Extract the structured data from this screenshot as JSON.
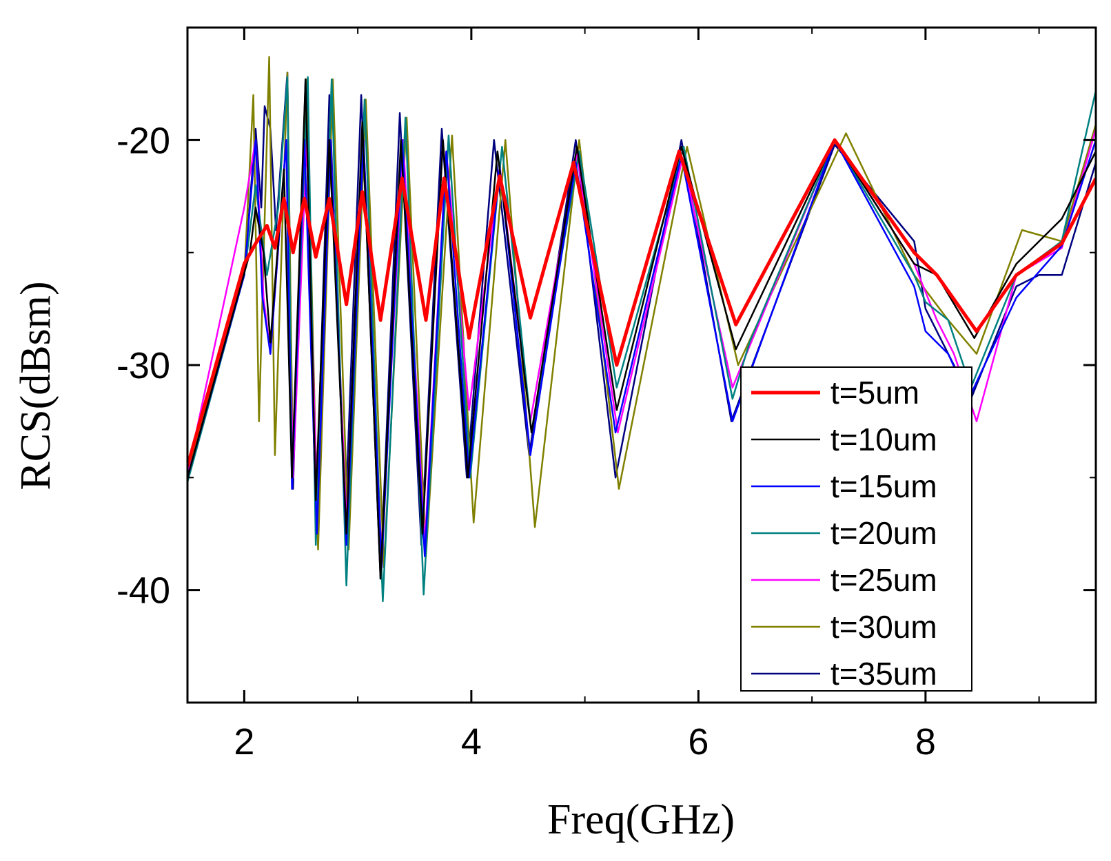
{
  "chart_data": {
    "type": "line",
    "title": "",
    "xlabel": "Freq(GHz)",
    "ylabel": "RCS(dBsm)",
    "xlim": [
      1.5,
      9.5
    ],
    "ylim": [
      -45,
      -15
    ],
    "x_ticks": [
      2,
      4,
      6,
      8
    ],
    "x_tick_labels": [
      "2",
      "4",
      "6",
      "8"
    ],
    "y_ticks": [
      -20,
      -30,
      -40
    ],
    "y_tick_labels": [
      "-20",
      "-30",
      "-40"
    ],
    "grid": false,
    "legend_position": "lower-right inside plot",
    "series": [
      {
        "name": "t=5um",
        "color": "#ff0000",
        "width": 5,
        "points": [
          [
            1.5,
            -34.5
          ],
          [
            2.0,
            -25.5
          ],
          [
            2.1,
            -24.6
          ],
          [
            2.2,
            -23.8
          ],
          [
            2.27,
            -24.8
          ],
          [
            2.35,
            -22.6
          ],
          [
            2.43,
            -25.0
          ],
          [
            2.53,
            -22.6
          ],
          [
            2.63,
            -25.2
          ],
          [
            2.75,
            -22.6
          ],
          [
            2.9,
            -27.3
          ],
          [
            3.04,
            -22.3
          ],
          [
            3.2,
            -28.0
          ],
          [
            3.39,
            -21.7
          ],
          [
            3.6,
            -28.0
          ],
          [
            3.76,
            -21.7
          ],
          [
            3.98,
            -28.8
          ],
          [
            4.25,
            -21.6
          ],
          [
            4.52,
            -27.9
          ],
          [
            4.9,
            -21.0
          ],
          [
            5.28,
            -30.0
          ],
          [
            5.83,
            -20.5
          ],
          [
            6.33,
            -28.2
          ],
          [
            7.2,
            -20.0
          ],
          [
            7.9,
            -25.0
          ],
          [
            8.1,
            -26.0
          ],
          [
            8.45,
            -28.5
          ],
          [
            8.8,
            -26.0
          ],
          [
            9.2,
            -24.6
          ],
          [
            9.5,
            -21.7
          ]
        ]
      },
      {
        "name": "t=10um",
        "color": "#000000",
        "width": 2.5,
        "points": [
          [
            1.5,
            -35.0
          ],
          [
            2.05,
            -25.0
          ],
          [
            2.1,
            -23.0
          ],
          [
            2.17,
            -25.0
          ],
          [
            2.23,
            -29.0
          ],
          [
            2.35,
            -21.3
          ],
          [
            2.42,
            -35.0
          ],
          [
            2.54,
            -17.3
          ],
          [
            2.63,
            -36.0
          ],
          [
            2.75,
            -20.0
          ],
          [
            2.9,
            -37.5
          ],
          [
            3.04,
            -19.2
          ],
          [
            3.2,
            -39.5
          ],
          [
            3.38,
            -20.0
          ],
          [
            3.57,
            -37.5
          ],
          [
            3.75,
            -20.0
          ],
          [
            3.97,
            -35.0
          ],
          [
            4.23,
            -20.5
          ],
          [
            4.53,
            -33.0
          ],
          [
            4.93,
            -20.3
          ],
          [
            5.28,
            -32.0
          ],
          [
            5.85,
            -20.3
          ],
          [
            6.33,
            -29.3
          ],
          [
            7.2,
            -20.0
          ],
          [
            7.9,
            -25.5
          ],
          [
            8.1,
            -26.0
          ],
          [
            8.43,
            -28.8
          ],
          [
            8.8,
            -25.5
          ],
          [
            9.2,
            -23.5
          ],
          [
            9.5,
            -20.5
          ]
        ]
      },
      {
        "name": "t=15um",
        "color": "#0000ff",
        "width": 2.5,
        "points": [
          [
            1.5,
            -35.0
          ],
          [
            2.0,
            -26.0
          ],
          [
            2.1,
            -20.0
          ],
          [
            2.16,
            -27.0
          ],
          [
            2.23,
            -29.5
          ],
          [
            2.37,
            -20.0
          ],
          [
            2.42,
            -35.5
          ],
          [
            2.53,
            -20.0
          ],
          [
            2.64,
            -37.5
          ],
          [
            2.76,
            -20.0
          ],
          [
            2.9,
            -38.0
          ],
          [
            3.05,
            -20.0
          ],
          [
            3.21,
            -39.0
          ],
          [
            3.39,
            -20.0
          ],
          [
            3.59,
            -38.5
          ],
          [
            3.78,
            -20.5
          ],
          [
            3.98,
            -35.0
          ],
          [
            4.25,
            -21.2
          ],
          [
            4.52,
            -34.0
          ],
          [
            4.92,
            -21.0
          ],
          [
            5.27,
            -33.0
          ],
          [
            5.85,
            -20.7
          ],
          [
            6.3,
            -32.5
          ],
          [
            7.2,
            -20.0
          ],
          [
            7.9,
            -26.5
          ],
          [
            8.0,
            -28.5
          ],
          [
            8.2,
            -29.5
          ],
          [
            8.38,
            -31.5
          ],
          [
            8.8,
            -27.0
          ],
          [
            9.2,
            -24.7
          ],
          [
            9.5,
            -20.0
          ]
        ]
      },
      {
        "name": "t=20um",
        "color": "#008080",
        "width": 2.5,
        "points": [
          [
            1.5,
            -35.2
          ],
          [
            2.0,
            -26.0
          ],
          [
            2.1,
            -22.0
          ],
          [
            2.2,
            -26.0
          ],
          [
            2.3,
            -23.0
          ],
          [
            2.38,
            -17.2
          ],
          [
            2.42,
            -35.0
          ],
          [
            2.56,
            -17.2
          ],
          [
            2.63,
            -38.0
          ],
          [
            2.77,
            -17.3
          ],
          [
            2.9,
            -39.8
          ],
          [
            3.06,
            -18.2
          ],
          [
            3.22,
            -40.5
          ],
          [
            3.42,
            -19.0
          ],
          [
            3.58,
            -40.2
          ],
          [
            3.8,
            -19.8
          ],
          [
            3.99,
            -35.0
          ],
          [
            4.27,
            -20.3
          ],
          [
            4.53,
            -33.0
          ],
          [
            4.95,
            -20.5
          ],
          [
            5.28,
            -31.0
          ],
          [
            5.87,
            -20.3
          ],
          [
            6.3,
            -31.5
          ],
          [
            6.45,
            -29.0
          ],
          [
            7.2,
            -20.0
          ],
          [
            7.9,
            -26.0
          ],
          [
            8.0,
            -27.2
          ],
          [
            8.2,
            -28.0
          ],
          [
            8.4,
            -31.0
          ],
          [
            8.8,
            -26.0
          ],
          [
            9.2,
            -24.5
          ],
          [
            9.5,
            -17.8
          ]
        ]
      },
      {
        "name": "t=25um",
        "color": "#ff00ff",
        "width": 2.5,
        "points": [
          [
            1.5,
            -34.8
          ],
          [
            2.0,
            -23.0
          ],
          [
            2.1,
            -20.0
          ],
          [
            2.17,
            -27.0
          ],
          [
            2.23,
            -29.5
          ],
          [
            2.37,
            -20.0
          ],
          [
            2.43,
            -35.0
          ],
          [
            2.55,
            -20.0
          ],
          [
            2.64,
            -36.0
          ],
          [
            2.76,
            -20.0
          ],
          [
            2.9,
            -37.0
          ],
          [
            3.05,
            -20.0
          ],
          [
            3.21,
            -38.5
          ],
          [
            3.4,
            -20.0
          ],
          [
            3.59,
            -38.0
          ],
          [
            3.78,
            -20.5
          ],
          [
            3.98,
            -32.0
          ],
          [
            4.25,
            -21.2
          ],
          [
            4.52,
            -32.5
          ],
          [
            4.93,
            -20.6
          ],
          [
            5.29,
            -33.0
          ],
          [
            5.86,
            -20.8
          ],
          [
            6.3,
            -31.0
          ],
          [
            7.2,
            -20.0
          ],
          [
            7.9,
            -25.5
          ],
          [
            8.1,
            -28.0
          ],
          [
            8.25,
            -29.5
          ],
          [
            8.45,
            -32.5
          ],
          [
            8.8,
            -26.0
          ],
          [
            9.2,
            -24.8
          ],
          [
            9.5,
            -19.5
          ]
        ]
      },
      {
        "name": "t=30um",
        "color": "#808000",
        "width": 2.5,
        "points": [
          [
            1.5,
            -34.8
          ],
          [
            2.0,
            -26.0
          ],
          [
            2.08,
            -18.0
          ],
          [
            2.13,
            -32.5
          ],
          [
            2.22,
            -16.3
          ],
          [
            2.27,
            -34.0
          ],
          [
            2.38,
            -17.0
          ],
          [
            2.43,
            -35.0
          ],
          [
            2.55,
            -17.3
          ],
          [
            2.65,
            -38.2
          ],
          [
            2.78,
            -17.3
          ],
          [
            2.92,
            -38.2
          ],
          [
            3.07,
            -18.2
          ],
          [
            3.23,
            -39.0
          ],
          [
            3.43,
            -19.0
          ],
          [
            3.6,
            -38.5
          ],
          [
            3.83,
            -19.8
          ],
          [
            4.02,
            -37.0
          ],
          [
            4.3,
            -20.0
          ],
          [
            4.56,
            -37.2
          ],
          [
            4.95,
            -20.0
          ],
          [
            5.3,
            -35.5
          ],
          [
            5.9,
            -20.3
          ],
          [
            6.35,
            -30.0
          ],
          [
            7.3,
            -19.7
          ],
          [
            7.9,
            -26.0
          ],
          [
            8.2,
            -28.0
          ],
          [
            8.45,
            -29.5
          ],
          [
            8.85,
            -24.0
          ],
          [
            9.2,
            -24.5
          ],
          [
            9.5,
            -19.3
          ]
        ]
      },
      {
        "name": "t=35um",
        "color": "#00007f",
        "width": 2.5,
        "points": [
          [
            1.5,
            -35.0
          ],
          [
            2.0,
            -26.0
          ],
          [
            2.1,
            -19.5
          ],
          [
            2.15,
            -23.0
          ],
          [
            2.18,
            -18.5
          ],
          [
            2.23,
            -19.5
          ],
          [
            2.28,
            -24.0
          ],
          [
            2.38,
            -17.0
          ],
          [
            2.43,
            -35.5
          ],
          [
            2.54,
            -17.3
          ],
          [
            2.63,
            -37.0
          ],
          [
            2.75,
            -18.0
          ],
          [
            2.89,
            -37.0
          ],
          [
            3.03,
            -18.0
          ],
          [
            3.2,
            -39.5
          ],
          [
            3.37,
            -18.8
          ],
          [
            3.56,
            -38.0
          ],
          [
            3.74,
            -19.5
          ],
          [
            3.96,
            -35.0
          ],
          [
            4.2,
            -20.0
          ],
          [
            4.51,
            -34.0
          ],
          [
            4.92,
            -20.0
          ],
          [
            5.27,
            -35.0
          ],
          [
            5.85,
            -20.0
          ],
          [
            6.29,
            -32.5
          ],
          [
            7.2,
            -20.2
          ],
          [
            7.9,
            -24.5
          ],
          [
            8.0,
            -27.5
          ],
          [
            8.2,
            -29.5
          ],
          [
            8.4,
            -31.5
          ],
          [
            8.8,
            -26.5
          ],
          [
            9.0,
            -26.0
          ],
          [
            9.2,
            -26.0
          ],
          [
            9.5,
            -21.0
          ]
        ]
      }
    ]
  }
}
